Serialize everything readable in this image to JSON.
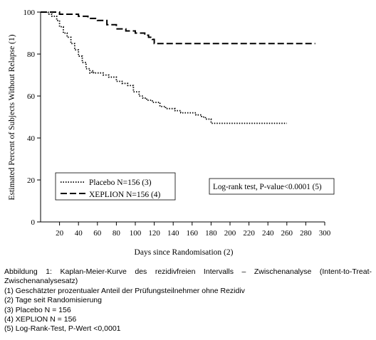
{
  "chart_data": {
    "type": "line",
    "title": "",
    "xlabel": "Days since Randomisation (2)",
    "ylabel": "Estimated Percent of Subjects Without Relapse (1)",
    "xlim": [
      0,
      300
    ],
    "ylim": [
      0,
      100
    ],
    "xticks": [
      20,
      40,
      60,
      80,
      100,
      120,
      140,
      160,
      180,
      200,
      220,
      240,
      260,
      280,
      300
    ],
    "yticks": [
      0,
      20,
      40,
      60,
      80,
      100
    ],
    "grid": false,
    "legend_position": "bottom-left",
    "series": [
      {
        "name": "Placebo N=156 (3)",
        "style": "dotted",
        "color": "#000000",
        "x": [
          0,
          8,
          12,
          17,
          20,
          24,
          28,
          32,
          36,
          40,
          44,
          48,
          52,
          54,
          56,
          60,
          66,
          72,
          80,
          86,
          92,
          98,
          104,
          108,
          112,
          118,
          126,
          132,
          136,
          142,
          148,
          156,
          164,
          170,
          174,
          180,
          186,
          200,
          220,
          240,
          260
        ],
        "y": [
          100,
          99,
          98,
          96,
          93,
          90,
          88,
          85,
          82,
          79,
          76,
          73,
          71,
          72,
          71,
          71,
          70,
          69,
          67,
          66,
          65,
          62,
          60,
          59,
          58,
          57,
          55,
          54,
          54,
          53,
          52,
          52,
          51,
          50,
          49,
          47,
          47,
          47,
          47,
          47,
          47
        ]
      },
      {
        "name": "XEPLION N=156 (4)",
        "style": "dashed",
        "color": "#000000",
        "x": [
          0,
          10,
          20,
          30,
          40,
          50,
          60,
          70,
          80,
          90,
          100,
          110,
          114,
          118,
          120,
          140,
          180,
          220,
          250,
          260,
          280,
          290
        ],
        "y": [
          100,
          100,
          99,
          99,
          98,
          97,
          96,
          94,
          92,
          91,
          90,
          89,
          88,
          87,
          85,
          85,
          85,
          85,
          85,
          85,
          85,
          85
        ]
      }
    ],
    "annotations": [
      "Log-rank test, P-value<0.0001 (5)"
    ]
  },
  "caption": {
    "title": "Abbildung 1: Kaplan-Meier-Kurve des rezidivfreien Intervalls – Zwischenanalyse (Intent-to-Treat-Zwischenanalysesatz)",
    "notes": [
      "(1) Geschätzter prozentualer Anteil der Prüfungsteilnehmer ohne Rezidiv",
      "(2) Tage seit Randomisierung",
      "(3) Placebo N = 156",
      "(4) XEPLION N = 156",
      "(5) Log-Rank-Test, P-Wert <0,0001"
    ]
  }
}
